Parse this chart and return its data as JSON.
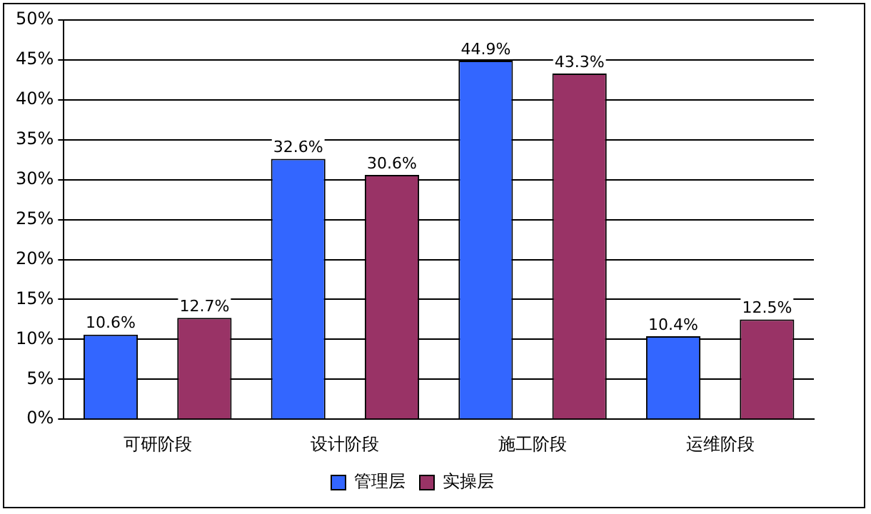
{
  "chart_data": {
    "type": "bar",
    "categories": [
      "可研阶段",
      "设计阶段",
      "施工阶段",
      "运维阶段"
    ],
    "series": [
      {
        "name": "管理层",
        "color": "#3366ff",
        "values": [
          10.6,
          32.6,
          44.9,
          10.4
        ],
        "value_labels": [
          "10.6%",
          "32.6%",
          "44.9%",
          "10.4%"
        ]
      },
      {
        "name": "实操层",
        "color": "#993366",
        "values": [
          12.7,
          30.6,
          43.3,
          12.5
        ],
        "value_labels": [
          "12.7%",
          "30.6%",
          "43.3%",
          "12.5%"
        ]
      }
    ],
    "ylim": [
      0,
      50
    ],
    "yticks": [
      {
        "value": 0,
        "label": "0%"
      },
      {
        "value": 5,
        "label": "5%"
      },
      {
        "value": 10,
        "label": "10%"
      },
      {
        "value": 15,
        "label": "15%"
      },
      {
        "value": 20,
        "label": "20%"
      },
      {
        "value": 25,
        "label": "25%"
      },
      {
        "value": 30,
        "label": "30%"
      },
      {
        "value": 35,
        "label": "35%"
      },
      {
        "value": 40,
        "label": "40%"
      },
      {
        "value": 45,
        "label": "45%"
      },
      {
        "value": 50,
        "label": "50%"
      }
    ],
    "grid": "y",
    "legend": "bottom"
  }
}
